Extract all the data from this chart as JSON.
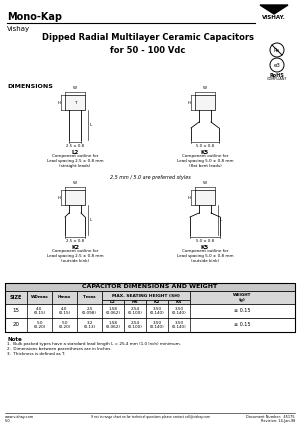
{
  "title_brand": "Mono-Kap",
  "subtitle_brand": "Vishay",
  "main_title": "Dipped Radial Multilayer Ceramic Capacitors\nfor 50 - 100 Vdc",
  "dimensions_label": "DIMENSIONS",
  "table_title": "CAPACITOR DIMENSIONS AND WEIGHT",
  "subheader": "MAX. SEATING HEIGHT (SH)",
  "rows": [
    [
      "15",
      "4.0\n(0.15)",
      "4.0\n(0.15)",
      "2.5\n(0.098)",
      "1.58\n(0.062)",
      "2.54\n(0.100)",
      "3.50\n(0.140)",
      "3.50\n(0.140)",
      "≤ 0.15"
    ],
    [
      "20",
      "5.0\n(0.20)",
      "5.0\n(0.20)",
      "3.2\n(0.13)",
      "1.58\n(0.062)",
      "2.54\n(0.100)",
      "3.50\n(0.140)",
      "3.50\n(0.140)",
      "≤ 0.15"
    ]
  ],
  "notes": [
    "1.  Bulk packed types have a standard lead length L = 25.4 mm (1.0 Inch) minimum.",
    "2.  Dimensions between parentheses are in Inches.",
    "3.  Thickness is defined as T."
  ],
  "footer_left": "www.vishay.com",
  "footer_center": "If not in range chart on for technical questions please contact coll@vishay.com",
  "footer_right_1": "Document Number:  45175",
  "footer_right_2": "Revision: 14-Jan-98",
  "note_label": "Note",
  "bg_color": "#ffffff"
}
